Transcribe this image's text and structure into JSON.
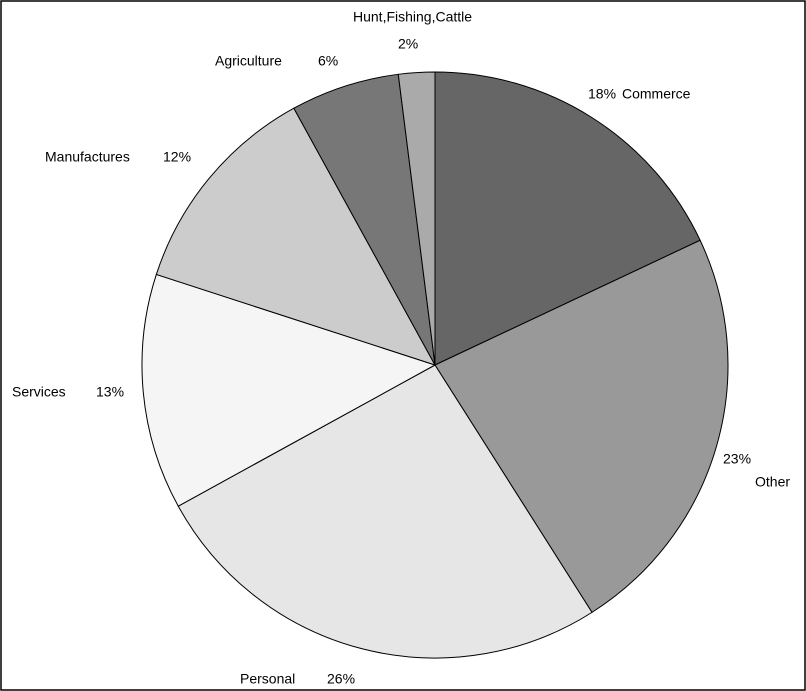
{
  "chart_data": {
    "type": "pie",
    "categories": [
      "Commerce",
      "Other",
      "Personal",
      "Services",
      "Manufactures",
      "Agriculture",
      "Hunt,Fishing,Cattle"
    ],
    "values": [
      18,
      23,
      26,
      13,
      12,
      6,
      2
    ],
    "value_labels": [
      "18%",
      "23%",
      "26%",
      "13%",
      "12%",
      "6%",
      "2%"
    ],
    "colors": [
      "#666666",
      "#999999",
      "#e6e6e6",
      "#f5f5f5",
      "#cccccc",
      "#777777",
      "#aaaaaa"
    ]
  }
}
